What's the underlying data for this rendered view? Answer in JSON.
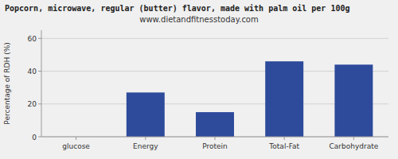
{
  "chart_data": {
    "type": "bar",
    "title": "Popcorn, microwave, regular (butter) flavor, made with palm oil per 100g",
    "subtitle": "www.dietandfitnesstoday.com",
    "ylabel": "Percentage of RDH (%)",
    "categories": [
      "glucose",
      "Energy",
      "Protein",
      "Total-Fat",
      "Carbohydrate"
    ],
    "values": [
      0,
      27,
      15,
      46,
      44
    ],
    "color": "#2d4a9b",
    "ylim": [
      0,
      65
    ],
    "yticks": [
      0,
      20,
      40,
      60
    ],
    "grid": true
  }
}
